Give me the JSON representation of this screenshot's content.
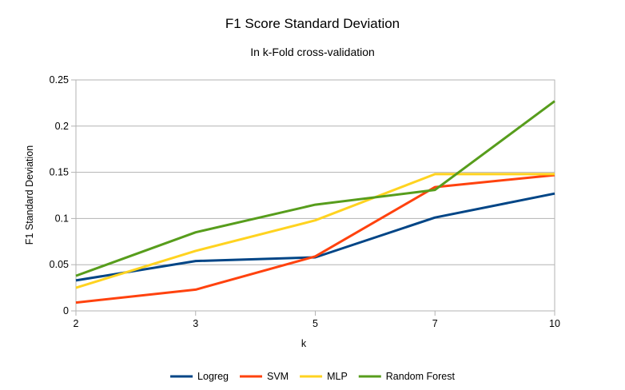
{
  "chart_data": {
    "type": "line",
    "title": "F1 Score Standard Deviation",
    "subtitle": "In k-Fold cross-validation",
    "xlabel": "k",
    "ylabel": "F1 Standard Deviation",
    "categories": [
      "2",
      "3",
      "5",
      "7",
      "10"
    ],
    "ylim": [
      0,
      0.25
    ],
    "yticks": [
      "0",
      "0.05",
      "0.1",
      "0.15",
      "0.2",
      "0.25"
    ],
    "ytick_values": [
      0,
      0.05,
      0.1,
      0.15,
      0.2,
      0.25
    ],
    "grid": true,
    "legend_position": "bottom",
    "series": [
      {
        "name": "Logreg",
        "color": "#004586",
        "values": [
          0.033,
          0.054,
          0.058,
          0.101,
          0.127
        ]
      },
      {
        "name": "SVM",
        "color": "#ff420e",
        "values": [
          0.009,
          0.023,
          0.059,
          0.134,
          0.147
        ]
      },
      {
        "name": "MLP",
        "color": "#ffd320",
        "values": [
          0.025,
          0.065,
          0.098,
          0.148,
          0.148
        ]
      },
      {
        "name": "Random Forest",
        "color": "#579d1c",
        "values": [
          0.038,
          0.085,
          0.115,
          0.131,
          0.227
        ]
      }
    ]
  }
}
